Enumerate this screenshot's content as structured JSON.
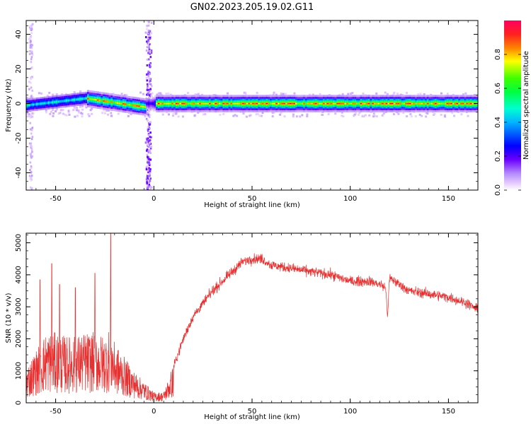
{
  "figure": {
    "title": "GN02.2023.205.19.02.G11"
  },
  "colors": {
    "snr_line": "#e83030",
    "colormap": [
      "#ffffff",
      "#e6ccff",
      "#b388ff",
      "#6a00ff",
      "#0000ff",
      "#00b4ff",
      "#00ffd0",
      "#00ff40",
      "#40ff00",
      "#ffff00",
      "#ff8000",
      "#ff2020",
      "#ff0060"
    ]
  },
  "chart_data": [
    {
      "type": "heatmap",
      "title": "",
      "xlabel": "Height of straight line (km)",
      "ylabel": "Frequency (Hz)",
      "xlim": [
        -65,
        165
      ],
      "ylim": [
        -50,
        48
      ],
      "x_ticks": [
        -50,
        0,
        50,
        100,
        150
      ],
      "y_ticks": [
        -40,
        -20,
        0,
        20,
        40
      ],
      "colorbar": {
        "label": "Normalized spectral amplitude",
        "range": [
          0,
          1
        ],
        "ticks": [
          "0.0",
          "0.2",
          "0.4",
          "0.6",
          "0.8"
        ]
      },
      "description_of_ridge": {
        "segments": [
          {
            "x": [
              -65,
              -35
            ],
            "freq_center": [
              -1,
              3
            ],
            "peak_amplitude": 0.55
          },
          {
            "x": [
              -35,
              -5
            ],
            "freq_center": [
              3,
              -2
            ],
            "peak_amplitude": 0.9
          },
          {
            "x": [
              -5,
              0
            ],
            "freq_center": [
              0,
              0
            ],
            "peak_amplitude": 0.3
          },
          {
            "x": [
              0,
              165
            ],
            "freq_center": [
              0,
              0
            ],
            "peak_amplitude": 0.95
          }
        ],
        "vertical_spread_near_x": [
          -63,
          -3
        ]
      }
    },
    {
      "type": "line",
      "title": "",
      "xlabel": "Height of straight line (km)",
      "ylabel": "SNR (10 * v/v)",
      "xlim": [
        -65,
        165
      ],
      "ylim": [
        0,
        5300
      ],
      "x_ticks": [
        -50,
        0,
        50,
        100,
        150
      ],
      "y_ticks": [
        0,
        1000,
        2000,
        3000,
        4000,
        5000
      ],
      "series": [
        {
          "envelope_x": [
            -65,
            -60,
            -55,
            -50,
            -45,
            -40,
            -35,
            -30,
            -25,
            -22,
            -20,
            -15,
            -10,
            -5,
            0,
            5,
            10,
            15,
            20,
            30,
            40,
            45,
            50,
            55,
            60,
            70,
            80,
            90,
            100,
            110,
            115,
            118,
            119,
            120,
            130,
            140,
            150,
            160,
            165
          ],
          "envelope_y": [
            1000,
            1500,
            2000,
            2000,
            1900,
            1900,
            2000,
            2000,
            1900,
            2200,
            1700,
            1300,
            900,
            600,
            300,
            300,
            1100,
            2000,
            2700,
            3500,
            4100,
            4400,
            4500,
            4500,
            4300,
            4200,
            4100,
            4000,
            3800,
            3800,
            3700,
            3600,
            2700,
            3900,
            3500,
            3400,
            3300,
            3100,
            2900
          ],
          "peak_values": [
            [
              -52,
              4350
            ],
            [
              -58,
              3850
            ],
            [
              -48,
              3700
            ],
            [
              -30,
              4050
            ],
            [
              -22,
              5300
            ],
            [
              -40,
              3600
            ]
          ]
        }
      ]
    }
  ]
}
